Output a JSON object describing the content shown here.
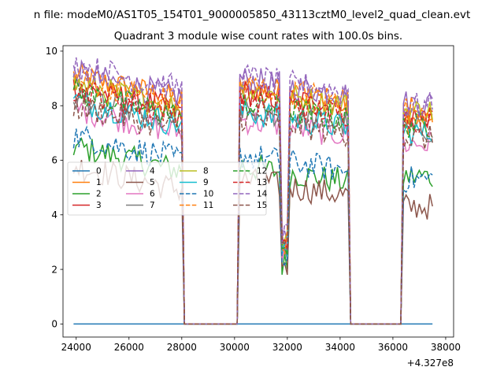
{
  "figure": {
    "suptitle": "n file: modeM0/AS1T05_154T01_9000005850_43113cztM0_level2_quad_clean.evt"
  },
  "chart_data": {
    "type": "line",
    "title": "Quadrant 3 module wise count rates with 100.0s bins.",
    "xlabel": "",
    "ylabel": "",
    "xlim": [
      23500,
      38300
    ],
    "ylim": [
      -0.48,
      10.2
    ],
    "xticks": [
      24000,
      26000,
      28000,
      30000,
      32000,
      34000,
      36000,
      38000
    ],
    "xtick_labels": [
      "24000",
      "26000",
      "28000",
      "30000",
      "32000",
      "34000",
      "36000",
      "38000"
    ],
    "yticks": [
      0,
      2,
      4,
      6,
      8,
      10
    ],
    "ytick_labels": [
      "0",
      "2",
      "4",
      "6",
      "8",
      "10"
    ],
    "x_offset_label": "+4.327e8",
    "grid": false,
    "legend": {
      "placement": "center-left",
      "columns": 4
    },
    "gaps": [
      [
        28150,
        30050
      ],
      [
        34450,
        36300
      ]
    ],
    "segments": [
      [
        23900,
        28050
      ],
      [
        30150,
        34350
      ],
      [
        36400,
        37550
      ]
    ],
    "series": [
      {
        "name": "0",
        "color": "#1f77b4",
        "dash": "solid",
        "levels": [
          0,
          0,
          0
        ]
      },
      {
        "name": "1",
        "color": "#ff7f0e",
        "dash": "solid",
        "levels": [
          8.2,
          8.1,
          7.4
        ]
      },
      {
        "name": "2",
        "color": "#2ca02c",
        "dash": "solid",
        "levels": [
          5.6,
          5.2,
          5.4
        ]
      },
      {
        "name": "3",
        "color": "#d62728",
        "dash": "solid",
        "levels": [
          7.8,
          7.9,
          7.6
        ]
      },
      {
        "name": "4",
        "color": "#9467bd",
        "dash": "solid",
        "levels": [
          8.3,
          8.4,
          8.1
        ]
      },
      {
        "name": "5",
        "color": "#8c564b",
        "dash": "solid",
        "levels": [
          4.9,
          4.7,
          4.3
        ]
      },
      {
        "name": "6",
        "color": "#e377c2",
        "dash": "solid",
        "levels": [
          7.0,
          6.9,
          6.6
        ]
      },
      {
        "name": "7",
        "color": "#7f7f7f",
        "dash": "solid",
        "levels": [
          7.4,
          7.3,
          7.1
        ]
      },
      {
        "name": "8",
        "color": "#bcbd22",
        "dash": "solid",
        "levels": [
          7.9,
          8.0,
          7.8
        ]
      },
      {
        "name": "9",
        "color": "#17becf",
        "dash": "solid",
        "levels": [
          7.3,
          7.2,
          7.0
        ]
      },
      {
        "name": "10",
        "color": "#1f77b4",
        "dash": "dashed",
        "levels": [
          6.0,
          5.6,
          5.3
        ]
      },
      {
        "name": "11",
        "color": "#ff7f0e",
        "dash": "dashed",
        "levels": [
          8.1,
          8.2,
          7.9
        ]
      },
      {
        "name": "12",
        "color": "#2ca02c",
        "dash": "dashed",
        "levels": [
          7.6,
          7.5,
          7.3
        ]
      },
      {
        "name": "13",
        "color": "#d62728",
        "dash": "dashed",
        "levels": [
          7.7,
          7.7,
          7.5
        ]
      },
      {
        "name": "14",
        "color": "#9467bd",
        "dash": "dashed",
        "levels": [
          8.6,
          8.5,
          8.0
        ]
      },
      {
        "name": "15",
        "color": "#8c564b",
        "dash": "dashed",
        "levels": [
          7.1,
          7.0,
          6.8
        ]
      }
    ]
  }
}
